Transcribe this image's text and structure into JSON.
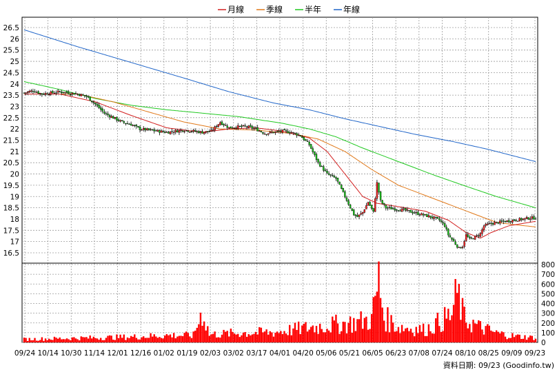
{
  "chart_data": {
    "type": "candlestick",
    "legend": [
      {
        "name": "月線",
        "color": "#d21e1e"
      },
      {
        "name": "季線",
        "color": "#e07818"
      },
      {
        "name": "半年",
        "color": "#1ec81e"
      },
      {
        "name": "年線",
        "color": "#1e64c8"
      }
    ],
    "price_ticks": [
      "26.5",
      "26",
      "25.5",
      "25",
      "24.5",
      "24",
      "23.5",
      "23",
      "22.5",
      "22",
      "21.5",
      "21",
      "20.5",
      "20",
      "19.5",
      "19",
      "18.5",
      "18",
      "17.5",
      "17",
      "16.5"
    ],
    "price_ylim": [
      16.5,
      26.5
    ],
    "volume_ticks": [
      "800",
      "700",
      "600",
      "500",
      "400",
      "300",
      "200",
      "100",
      "0"
    ],
    "volume_ylim": [
      0,
      800
    ],
    "x_labels": [
      "09/24",
      "10/14",
      "10/30",
      "11/14",
      "12/01",
      "12/16",
      "01/02",
      "01/19",
      "02/03",
      "03/02",
      "03/17",
      "04/01",
      "04/20",
      "05/06",
      "05/21",
      "06/05",
      "06/23",
      "07/08",
      "07/24",
      "08/10",
      "08/25",
      "09/09",
      "09/23"
    ],
    "footer": "資料日期: 09/23 (Goodinfo.tw)",
    "close_path": [
      [
        0,
        23.6
      ],
      [
        5,
        23.7
      ],
      [
        10,
        23.55
      ],
      [
        15,
        23.6
      ],
      [
        20,
        23.65
      ],
      [
        25,
        23.6
      ],
      [
        30,
        23.55
      ],
      [
        35,
        23.45
      ],
      [
        40,
        23.1
      ],
      [
        45,
        22.7
      ],
      [
        50,
        22.5
      ],
      [
        55,
        22.3
      ],
      [
        60,
        22.2
      ],
      [
        65,
        22.0
      ],
      [
        70,
        21.95
      ],
      [
        75,
        21.9
      ],
      [
        80,
        21.85
      ],
      [
        85,
        21.9
      ],
      [
        90,
        21.95
      ],
      [
        95,
        21.9
      ],
      [
        100,
        21.85
      ],
      [
        105,
        21.9
      ],
      [
        110,
        22.3
      ],
      [
        115,
        22.05
      ],
      [
        120,
        22.1
      ],
      [
        125,
        22.1
      ],
      [
        130,
        22.0
      ],
      [
        135,
        21.8
      ],
      [
        140,
        21.85
      ],
      [
        145,
        21.9
      ],
      [
        150,
        21.85
      ],
      [
        155,
        21.7
      ],
      [
        160,
        21.3
      ],
      [
        165,
        20.5
      ],
      [
        170,
        20.0
      ],
      [
        175,
        19.8
      ],
      [
        180,
        19.0
      ],
      [
        185,
        18.2
      ],
      [
        187,
        18.1
      ],
      [
        190,
        18.3
      ],
      [
        193,
        18.75
      ],
      [
        196,
        18.3
      ],
      [
        198,
        19.6
      ],
      [
        200,
        18.8
      ],
      [
        203,
        18.5
      ],
      [
        208,
        18.45
      ],
      [
        213,
        18.4
      ],
      [
        218,
        18.3
      ],
      [
        223,
        18.2
      ],
      [
        228,
        18.1
      ],
      [
        233,
        17.95
      ],
      [
        236,
        17.7
      ],
      [
        238,
        17.3
      ],
      [
        240,
        17.1
      ],
      [
        242,
        16.9
      ],
      [
        244,
        16.7
      ],
      [
        246,
        16.8
      ],
      [
        248,
        17.3
      ],
      [
        250,
        17.1
      ],
      [
        253,
        17.2
      ],
      [
        256,
        17.35
      ],
      [
        258,
        17.7
      ],
      [
        262,
        17.8
      ],
      [
        266,
        17.85
      ],
      [
        270,
        17.9
      ],
      [
        275,
        17.95
      ],
      [
        280,
        18.0
      ],
      [
        284,
        18.05
      ],
      [
        287,
        18.05
      ]
    ],
    "sma_month": [
      [
        0,
        23.55
      ],
      [
        20,
        23.55
      ],
      [
        40,
        23.2
      ],
      [
        60,
        22.6
      ],
      [
        80,
        22.05
      ],
      [
        100,
        21.85
      ],
      [
        115,
        22.0
      ],
      [
        130,
        22.05
      ],
      [
        145,
        21.9
      ],
      [
        160,
        21.6
      ],
      [
        170,
        21.0
      ],
      [
        180,
        20.0
      ],
      [
        190,
        19.0
      ],
      [
        198,
        18.7
      ],
      [
        210,
        18.55
      ],
      [
        225,
        18.35
      ],
      [
        238,
        17.95
      ],
      [
        248,
        17.4
      ],
      [
        256,
        17.15
      ],
      [
        262,
        17.4
      ],
      [
        272,
        17.7
      ],
      [
        287,
        17.9
      ]
    ],
    "sma_quarter": [
      [
        0,
        23.55
      ],
      [
        30,
        23.55
      ],
      [
        50,
        23.2
      ],
      [
        70,
        22.75
      ],
      [
        90,
        22.3
      ],
      [
        110,
        22.0
      ],
      [
        130,
        21.95
      ],
      [
        150,
        21.8
      ],
      [
        165,
        21.55
      ],
      [
        180,
        21.0
      ],
      [
        195,
        20.2
      ],
      [
        210,
        19.5
      ],
      [
        230,
        18.9
      ],
      [
        250,
        18.3
      ],
      [
        265,
        17.85
      ],
      [
        275,
        17.75
      ],
      [
        287,
        17.65
      ]
    ],
    "sma_half": [
      [
        0,
        24.1
      ],
      [
        20,
        23.75
      ],
      [
        40,
        23.35
      ],
      [
        60,
        23.05
      ],
      [
        80,
        22.85
      ],
      [
        100,
        22.7
      ],
      [
        120,
        22.55
      ],
      [
        145,
        22.25
      ],
      [
        160,
        22.0
      ],
      [
        175,
        21.65
      ],
      [
        190,
        21.15
      ],
      [
        210,
        20.55
      ],
      [
        230,
        19.95
      ],
      [
        250,
        19.4
      ],
      [
        265,
        19.0
      ],
      [
        287,
        18.5
      ]
    ],
    "sma_year": [
      [
        0,
        26.4
      ],
      [
        30,
        25.65
      ],
      [
        60,
        24.95
      ],
      [
        90,
        24.25
      ],
      [
        115,
        23.65
      ],
      [
        140,
        23.15
      ],
      [
        160,
        22.85
      ],
      [
        180,
        22.45
      ],
      [
        200,
        22.1
      ],
      [
        220,
        21.75
      ],
      [
        240,
        21.45
      ],
      [
        260,
        21.1
      ],
      [
        287,
        20.55
      ]
    ],
    "volume_profile": [
      [
        0,
        40
      ],
      [
        20,
        50
      ],
      [
        40,
        60
      ],
      [
        60,
        70
      ],
      [
        80,
        90
      ],
      [
        95,
        90
      ],
      [
        100,
        400
      ],
      [
        104,
        100
      ],
      [
        120,
        120
      ],
      [
        140,
        130
      ],
      [
        160,
        190
      ],
      [
        175,
        230
      ],
      [
        185,
        250
      ],
      [
        195,
        300
      ],
      [
        199,
        780
      ],
      [
        202,
        320
      ],
      [
        210,
        200
      ],
      [
        225,
        160
      ],
      [
        240,
        350
      ],
      [
        243,
        630
      ],
      [
        247,
        300
      ],
      [
        255,
        200
      ],
      [
        265,
        120
      ],
      [
        275,
        80
      ],
      [
        287,
        60
      ]
    ]
  }
}
